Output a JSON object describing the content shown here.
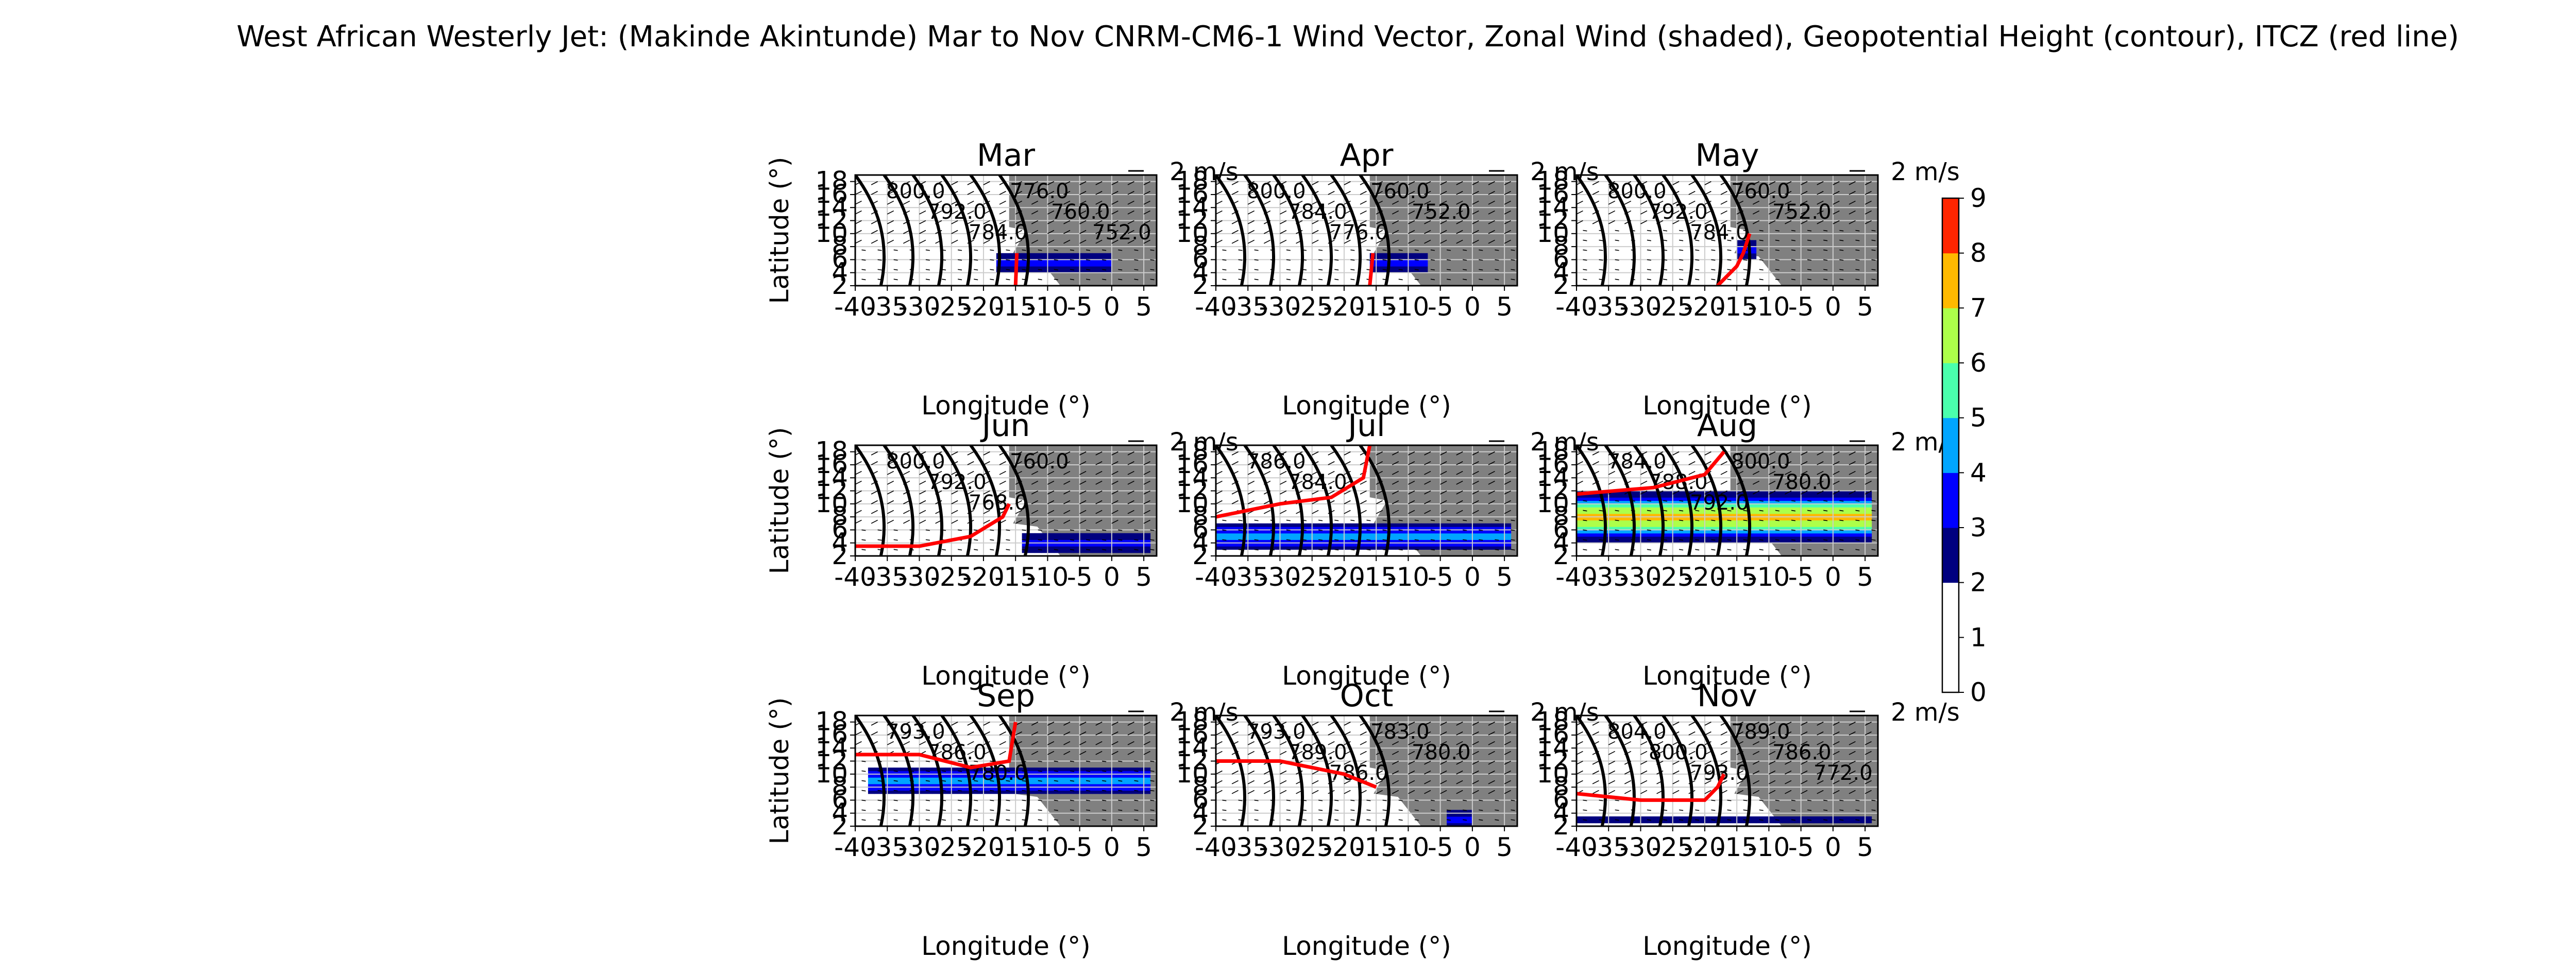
{
  "figure": {
    "title": "West African Westerly Jet: (Makinde Akintunde) Mar to Nov CNRM-CM6-1 Wind Vector, Zonal Wind (shaded), Geopotential Height (contour), ITCZ (red line)",
    "xlabel": "Longitude (°)",
    "ylabel": "Latitude (°)",
    "quiver_key_label": "2 m/s",
    "quiver_key_speed": 2,
    "land_color": "#808080",
    "itcz_color": "#ff0000"
  },
  "chart_data": {
    "type": "heatmap",
    "panels": [
      {
        "title": "Mar",
        "jet_axis_lat": 5.5,
        "jet_lon_range": [
          -18,
          0
        ],
        "jet_peak": 3,
        "itcz": {
          "lon": [
            -15,
            -14.8
          ],
          "lat": [
            2,
            7
          ]
        },
        "contour_labels": [
          "800.0",
          "792.0",
          "784.0",
          "776.0",
          "760.0",
          "752.0"
        ]
      },
      {
        "title": "Apr",
        "jet_axis_lat": 5.5,
        "jet_lon_range": [
          -16,
          -7
        ],
        "jet_peak": 3,
        "itcz": {
          "lon": [
            -16,
            -15.5
          ],
          "lat": [
            2,
            7
          ]
        },
        "contour_labels": [
          "800.0",
          "784.0",
          "776.0",
          "760.0",
          "752.0"
        ]
      },
      {
        "title": "May",
        "jet_axis_lat": 7.5,
        "jet_lon_range": [
          -15,
          -12
        ],
        "jet_peak": 3,
        "itcz": {
          "lon": [
            -18,
            -15,
            -14,
            -13
          ],
          "lat": [
            2,
            5,
            7,
            10
          ]
        },
        "contour_labels": [
          "800.0",
          "792.0",
          "784.0",
          "760.0",
          "752.0"
        ]
      },
      {
        "title": "Jun",
        "jet_axis_lat": 4,
        "jet_lon_range": [
          -14,
          6
        ],
        "jet_peak": 3,
        "itcz": {
          "lon": [
            -40,
            -30,
            -22,
            -17,
            -16
          ],
          "lat": [
            3.5,
            3.5,
            5,
            8,
            10
          ]
        },
        "contour_labels": [
          "800.0",
          "792.0",
          "768.0",
          "760.0"
        ]
      },
      {
        "title": "Jul",
        "jet_axis_lat": 5,
        "jet_lon_range": [
          -40,
          6
        ],
        "jet_peak": 4,
        "itcz": {
          "lon": [
            -40,
            -30,
            -22,
            -17,
            -16
          ],
          "lat": [
            8,
            10,
            11,
            14,
            19
          ]
        },
        "contour_labels": [
          "786.0",
          "784.0"
        ]
      },
      {
        "title": "Aug",
        "jet_axis_lat": 8,
        "jet_lon_range": [
          -40,
          6
        ],
        "jet_peak": 7,
        "itcz": {
          "lon": [
            -40,
            -28,
            -20,
            -17
          ],
          "lat": [
            11.5,
            12.5,
            14.5,
            18
          ]
        },
        "contour_labels": [
          "784.0",
          "788.0",
          "792.0",
          "800.0",
          "780.0"
        ]
      },
      {
        "title": "Sep",
        "jet_axis_lat": 9,
        "jet_lon_range": [
          -38,
          6
        ],
        "jet_peak": 4,
        "itcz": {
          "lon": [
            -40,
            -30,
            -22,
            -16,
            -15
          ],
          "lat": [
            13,
            13,
            11,
            12,
            18
          ]
        },
        "contour_labels": [
          "793.0",
          "786.0",
          "780.0"
        ]
      },
      {
        "title": "Oct",
        "jet_axis_lat": 3,
        "jet_lon_range": [
          -4,
          0
        ],
        "jet_peak": 3,
        "itcz": {
          "lon": [
            -40,
            -30,
            -20,
            -15
          ],
          "lat": [
            12,
            12,
            10,
            8
          ]
        },
        "contour_labels": [
          "793.0",
          "789.0",
          "786.0",
          "783.0",
          "780.0"
        ]
      },
      {
        "title": "Nov",
        "jet_axis_lat": 3,
        "jet_lon_range": [
          -40,
          6
        ],
        "jet_peak": 2,
        "itcz": {
          "lon": [
            -40,
            -30,
            -20,
            -18,
            -17
          ],
          "lat": [
            7,
            6,
            6,
            8,
            10
          ]
        },
        "contour_labels": [
          "804.0",
          "800.0",
          "793.0",
          "789.0",
          "786.0",
          "772.0"
        ]
      }
    ],
    "x_ticks": [
      -40,
      -35,
      -30,
      -25,
      -20,
      -15,
      -10,
      -5,
      0,
      5
    ],
    "x_tick_labels": [
      "-40",
      "-35",
      "-30",
      "-25",
      "-20",
      "-15",
      "-10",
      "-5",
      "0",
      "5"
    ],
    "y_ticks": [
      2,
      4,
      6,
      8,
      10,
      12,
      14,
      16,
      18
    ],
    "y_tick_labels": [
      "2",
      "4",
      "6",
      "8",
      "10",
      "12",
      "14",
      "16",
      "18"
    ],
    "xlim": [
      -40,
      7
    ],
    "ylim": [
      2,
      19
    ],
    "colorbar": {
      "levels": [
        0,
        1,
        2,
        3,
        4,
        5,
        6,
        7,
        8,
        9
      ],
      "tick_labels": [
        "0",
        "1",
        "2",
        "3",
        "4",
        "5",
        "6",
        "7",
        "8",
        "9"
      ],
      "colors": [
        "#ffffff",
        "#ffffff",
        "#00007f",
        "#0000ff",
        "#00a5ff",
        "#4affad",
        "#adff4a",
        "#ffb900",
        "#ff2500"
      ]
    }
  }
}
